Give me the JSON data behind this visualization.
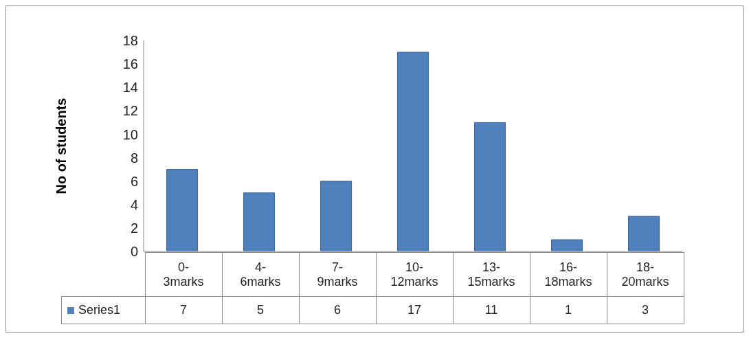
{
  "chart_data": {
    "type": "bar",
    "ylabel": "No of students",
    "categories": [
      "0-3marks",
      "4-6marks",
      "7-9marks",
      "10-12marks",
      "13-15marks",
      "16-18marks",
      "18-20marks"
    ],
    "series": [
      {
        "name": "Series1",
        "color": "#4f81bd",
        "values": [
          7,
          5,
          6,
          17,
          11,
          1,
          3
        ]
      }
    ],
    "ylim": [
      0,
      18
    ],
    "yticks": [
      0,
      2,
      4,
      6,
      8,
      10,
      12,
      14,
      16,
      18
    ],
    "legend": "bottom",
    "data_labels": true
  }
}
